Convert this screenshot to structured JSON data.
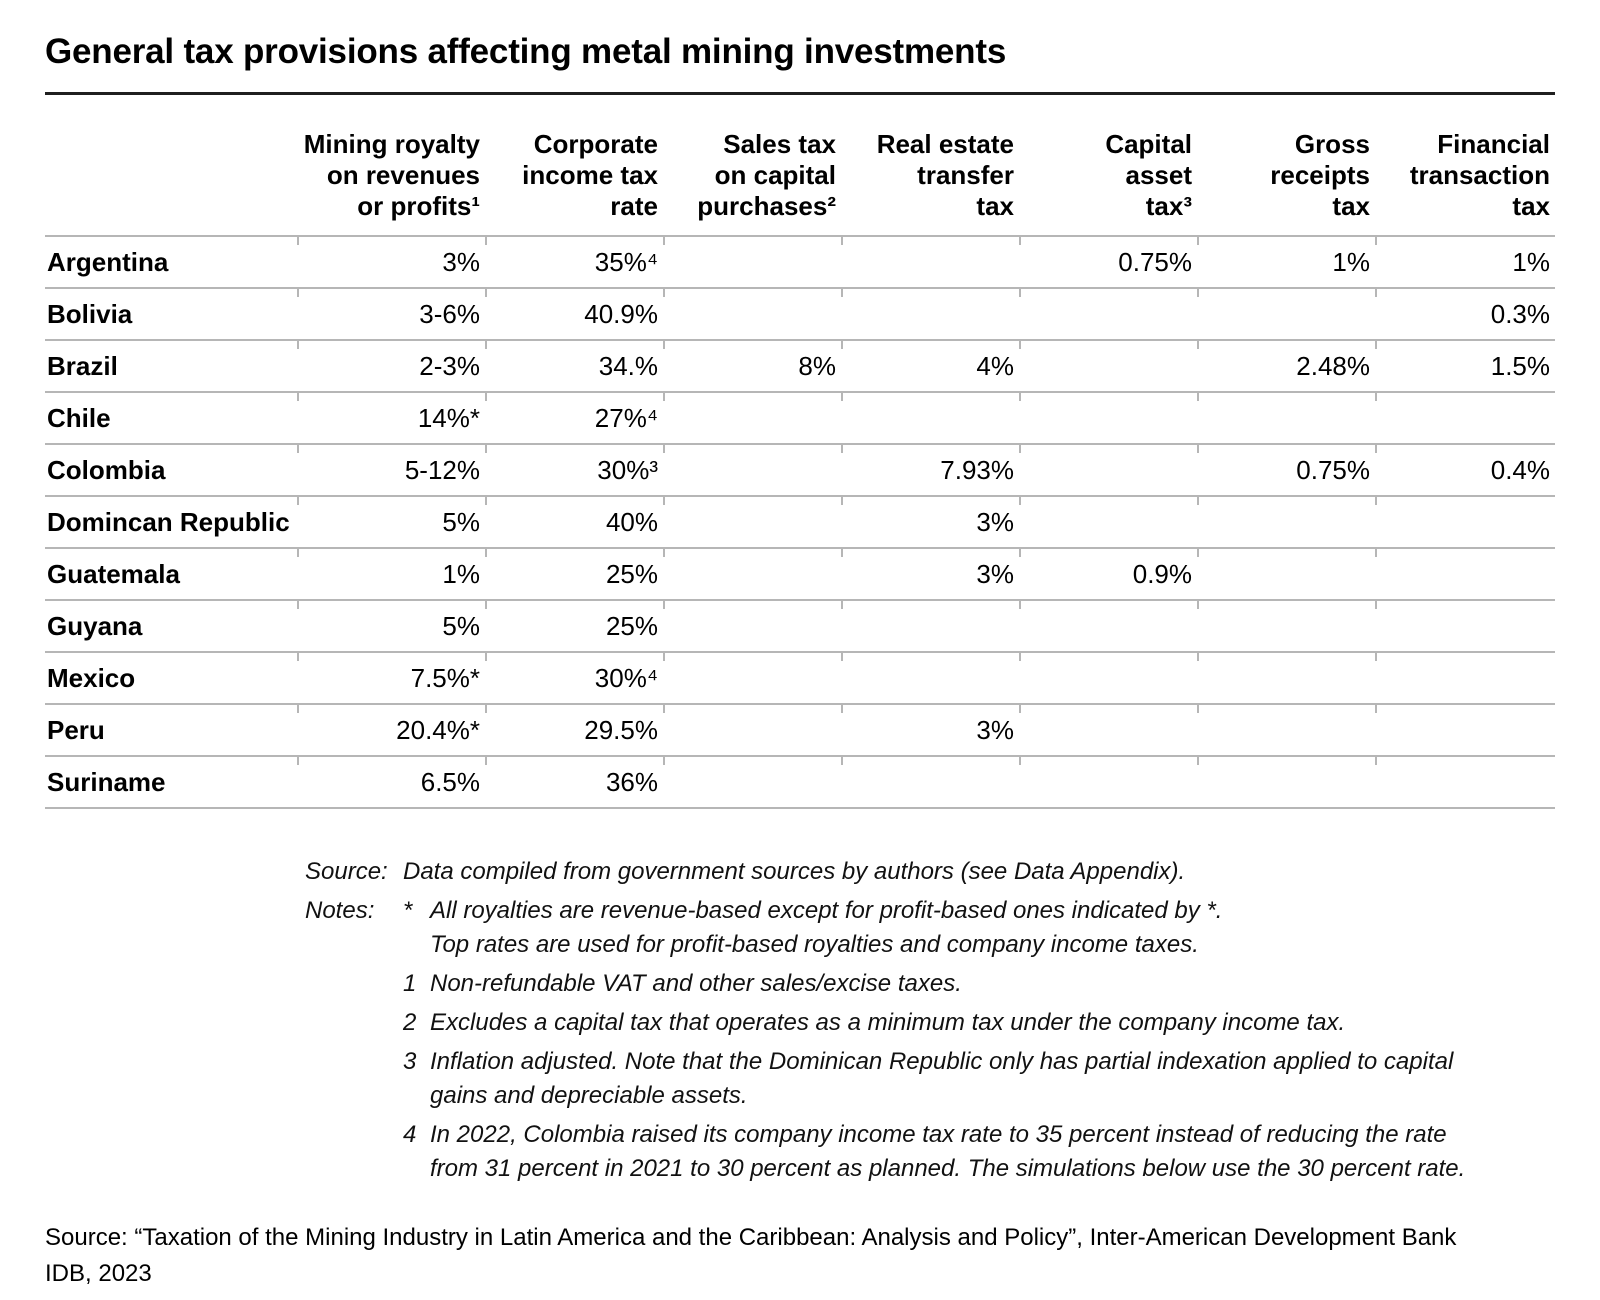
{
  "title": "General tax provisions affecting metal mining investments",
  "table": {
    "columns": [
      "",
      "Mining royalty\non revenues\nor profits¹",
      "Corporate\nincome tax\nrate",
      "Sales tax\non capital\npurchases²",
      "Real estate\ntransfer\ntax",
      "Capital\nasset\ntax³",
      "Gross\nreceipts\ntax",
      "Financial\ntransaction\ntax"
    ],
    "rows": [
      {
        "country": "Argentina",
        "values": [
          "3%",
          "35%⁴",
          "",
          "",
          "0.75%",
          "1%",
          "1%"
        ]
      },
      {
        "country": "Bolivia",
        "values": [
          "3-6%",
          "40.9%",
          "",
          "",
          "",
          "",
          "0.3%"
        ]
      },
      {
        "country": "Brazil",
        "values": [
          "2-3%",
          "34.%",
          "8%",
          "4%",
          "",
          "2.48%",
          "1.5%"
        ]
      },
      {
        "country": "Chile",
        "values": [
          "14%*",
          "27%⁴",
          "",
          "",
          "",
          "",
          ""
        ]
      },
      {
        "country": "Colombia",
        "values": [
          "5-12%",
          "30%³",
          "",
          "7.93%",
          "",
          "0.75%",
          "0.4%"
        ]
      },
      {
        "country": "Domincan Republic",
        "values": [
          "5%",
          "40%",
          "",
          "3%",
          "",
          "",
          ""
        ]
      },
      {
        "country": "Guatemala",
        "values": [
          "1%",
          "25%",
          "",
          "3%",
          "0.9%",
          "",
          ""
        ]
      },
      {
        "country": "Guyana",
        "values": [
          "5%",
          "25%",
          "",
          "",
          "",
          "",
          ""
        ]
      },
      {
        "country": "Mexico",
        "values": [
          "7.5%*",
          "30%⁴",
          "",
          "",
          "",
          "",
          ""
        ]
      },
      {
        "country": "Peru",
        "values": [
          "20.4%*",
          "29.5%",
          "",
          "3%",
          "",
          "",
          ""
        ]
      },
      {
        "country": "Suriname",
        "values": [
          "6.5%",
          "36%",
          "",
          "",
          "",
          "",
          ""
        ]
      }
    ]
  },
  "notes": {
    "source_label": "Source:",
    "source_text": "Data compiled from government sources by authors (see Data Appendix).",
    "notes_label": "Notes:",
    "items": [
      {
        "marker": "*",
        "text": "All royalties are revenue-based except for profit-based ones indicated by *.\nTop rates are used for profit-based royalties and company income taxes."
      },
      {
        "marker": "1",
        "text": "Non-refundable VAT and other sales/excise taxes."
      },
      {
        "marker": "2",
        "text": "Excludes a capital tax that operates as a minimum tax under the company income tax."
      },
      {
        "marker": "3",
        "text": "Inflation adjusted. Note that the Dominican Republic only has partial indexation applied to capital\ngains and depreciable assets."
      },
      {
        "marker": "4",
        "text": "In 2022, Colombia raised its company income tax rate to 35 percent instead of reducing the rate\nfrom 31 percent in 2021 to 30 percent as planned. The simulations below use the 30 percent rate."
      }
    ]
  },
  "footer": {
    "source": "Source: “Taxation of the Mining Industry in Latin America and the Caribbean: Analysis and Policy”, Inter-American Development Bank\nIDB, 2023"
  }
}
